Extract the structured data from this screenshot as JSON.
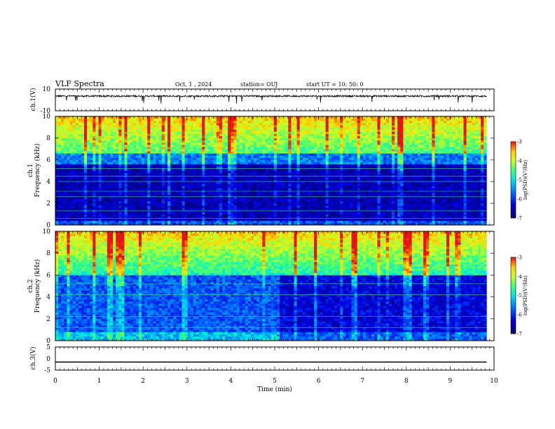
{
  "header": {
    "title": "VLF Spectra",
    "date": "Oct. 1 , 2024",
    "station": "station= OUJ",
    "start": "start UT =  10: 50: 0"
  },
  "chart_data": [
    {
      "type": "line",
      "name_label": "ch.1(V)",
      "ylabel": "ch.1(V)",
      "ylim": [
        -10,
        10
      ],
      "yticks": [
        "10",
        "-10"
      ],
      "xlim": [
        0,
        10
      ],
      "description_values": {
        "baseline": 3.5,
        "noise_amplitude": 1.5
      }
    },
    {
      "type": "heatmap",
      "ylabel_top": "ch.1",
      "ylabel": "Frequency (kHz)",
      "ylim": [
        0,
        10
      ],
      "yticks": [
        "0",
        "2",
        "4",
        "6",
        "8",
        "10"
      ],
      "xlim": [
        0,
        10
      ],
      "colorbar": {
        "label": "log(PSD)(V²/Hz)",
        "range": [
          -7,
          -3
        ],
        "ticks": [
          "-3",
          "-4",
          "-5",
          "-6",
          "-7"
        ]
      }
    },
    {
      "type": "heatmap",
      "ylabel_top": "ch.2",
      "ylabel": "Frequency (kHz)",
      "ylim": [
        0,
        10
      ],
      "yticks": [
        "0",
        "2",
        "4",
        "6",
        "8",
        "10"
      ],
      "xlim": [
        0,
        10
      ],
      "colorbar": {
        "label": "log(PSD)(V²/Hz)",
        "range": [
          -7,
          -3
        ],
        "ticks": [
          "-3",
          "-4",
          "-5",
          "-6",
          "-7"
        ]
      }
    },
    {
      "type": "line",
      "ylabel": "ch.3(V)",
      "ylim": [
        -5,
        5
      ],
      "yticks": [
        "5",
        "0",
        "-5"
      ],
      "xlim": [
        0,
        10
      ],
      "values": {
        "constant": -1.5
      }
    }
  ],
  "xaxis": {
    "label": "Time (min)",
    "ticks": [
      "0",
      "1",
      "2",
      "3",
      "4",
      "5",
      "6",
      "7",
      "8",
      "9",
      "10"
    ],
    "data_end": 9.83
  }
}
